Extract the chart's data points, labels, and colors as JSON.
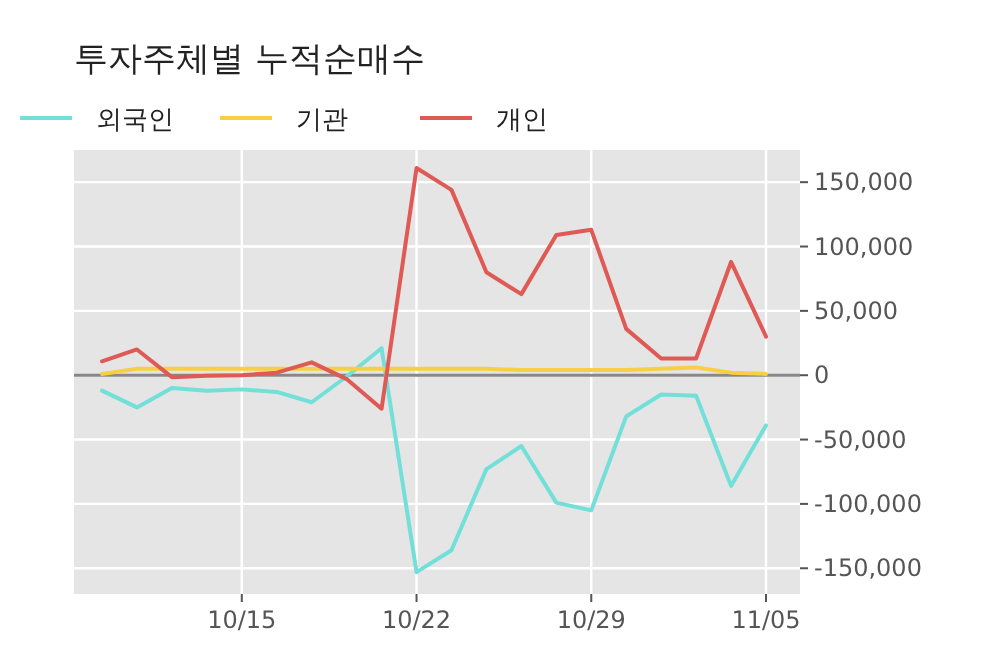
{
  "chart_data": {
    "type": "line",
    "title": "투자주체별 누적순매수",
    "categories": [
      null,
      null,
      null,
      null,
      "10/15",
      null,
      null,
      null,
      null,
      "10/22",
      null,
      null,
      null,
      null,
      "10/29",
      null,
      null,
      null,
      null,
      "11/05"
    ],
    "series": [
      {
        "name": "외국인",
        "color": "#72dfd8",
        "values": [
          -12000,
          -25000,
          -10000,
          -12000,
          -11000,
          -13000,
          -21000,
          -1000,
          21000,
          -153000,
          -136000,
          -73000,
          -55000,
          -99000,
          -105000,
          -32000,
          -15000,
          -16000,
          -86000,
          -39000
        ]
      },
      {
        "name": "기관",
        "color": "#f7cf46",
        "values": [
          1000,
          5000,
          5000,
          5000,
          5000,
          5000,
          5000,
          5000,
          5000,
          5000,
          5000,
          5000,
          4000,
          4000,
          4000,
          4000,
          5000,
          6000,
          2000,
          1000
        ]
      },
      {
        "name": "개인",
        "color": "#e05a55",
        "values": [
          10800,
          20000,
          -1500,
          -500,
          0,
          2000,
          10000,
          -3000,
          -26000,
          161000,
          144000,
          80000,
          63000,
          109000,
          113000,
          36000,
          13000,
          13000,
          88000,
          30000
        ]
      }
    ],
    "ylim": [
      -170000,
      175000
    ],
    "yticks": [
      {
        "value": -150000,
        "label": "-150,000"
      },
      {
        "value": -100000,
        "label": "-100,000"
      },
      {
        "value": -50000,
        "label": "-50,000"
      },
      0,
      {
        "value": 50000,
        "label": "50,000"
      },
      {
        "value": 100000,
        "label": "100,000"
      },
      {
        "value": 150000,
        "label": "150,000"
      }
    ],
    "ref_lines": [
      {
        "axis": "y",
        "value": 0,
        "color": "#888888"
      }
    ],
    "grid": true,
    "legend": "top left",
    "marker": "none",
    "line_style": "solid"
  }
}
